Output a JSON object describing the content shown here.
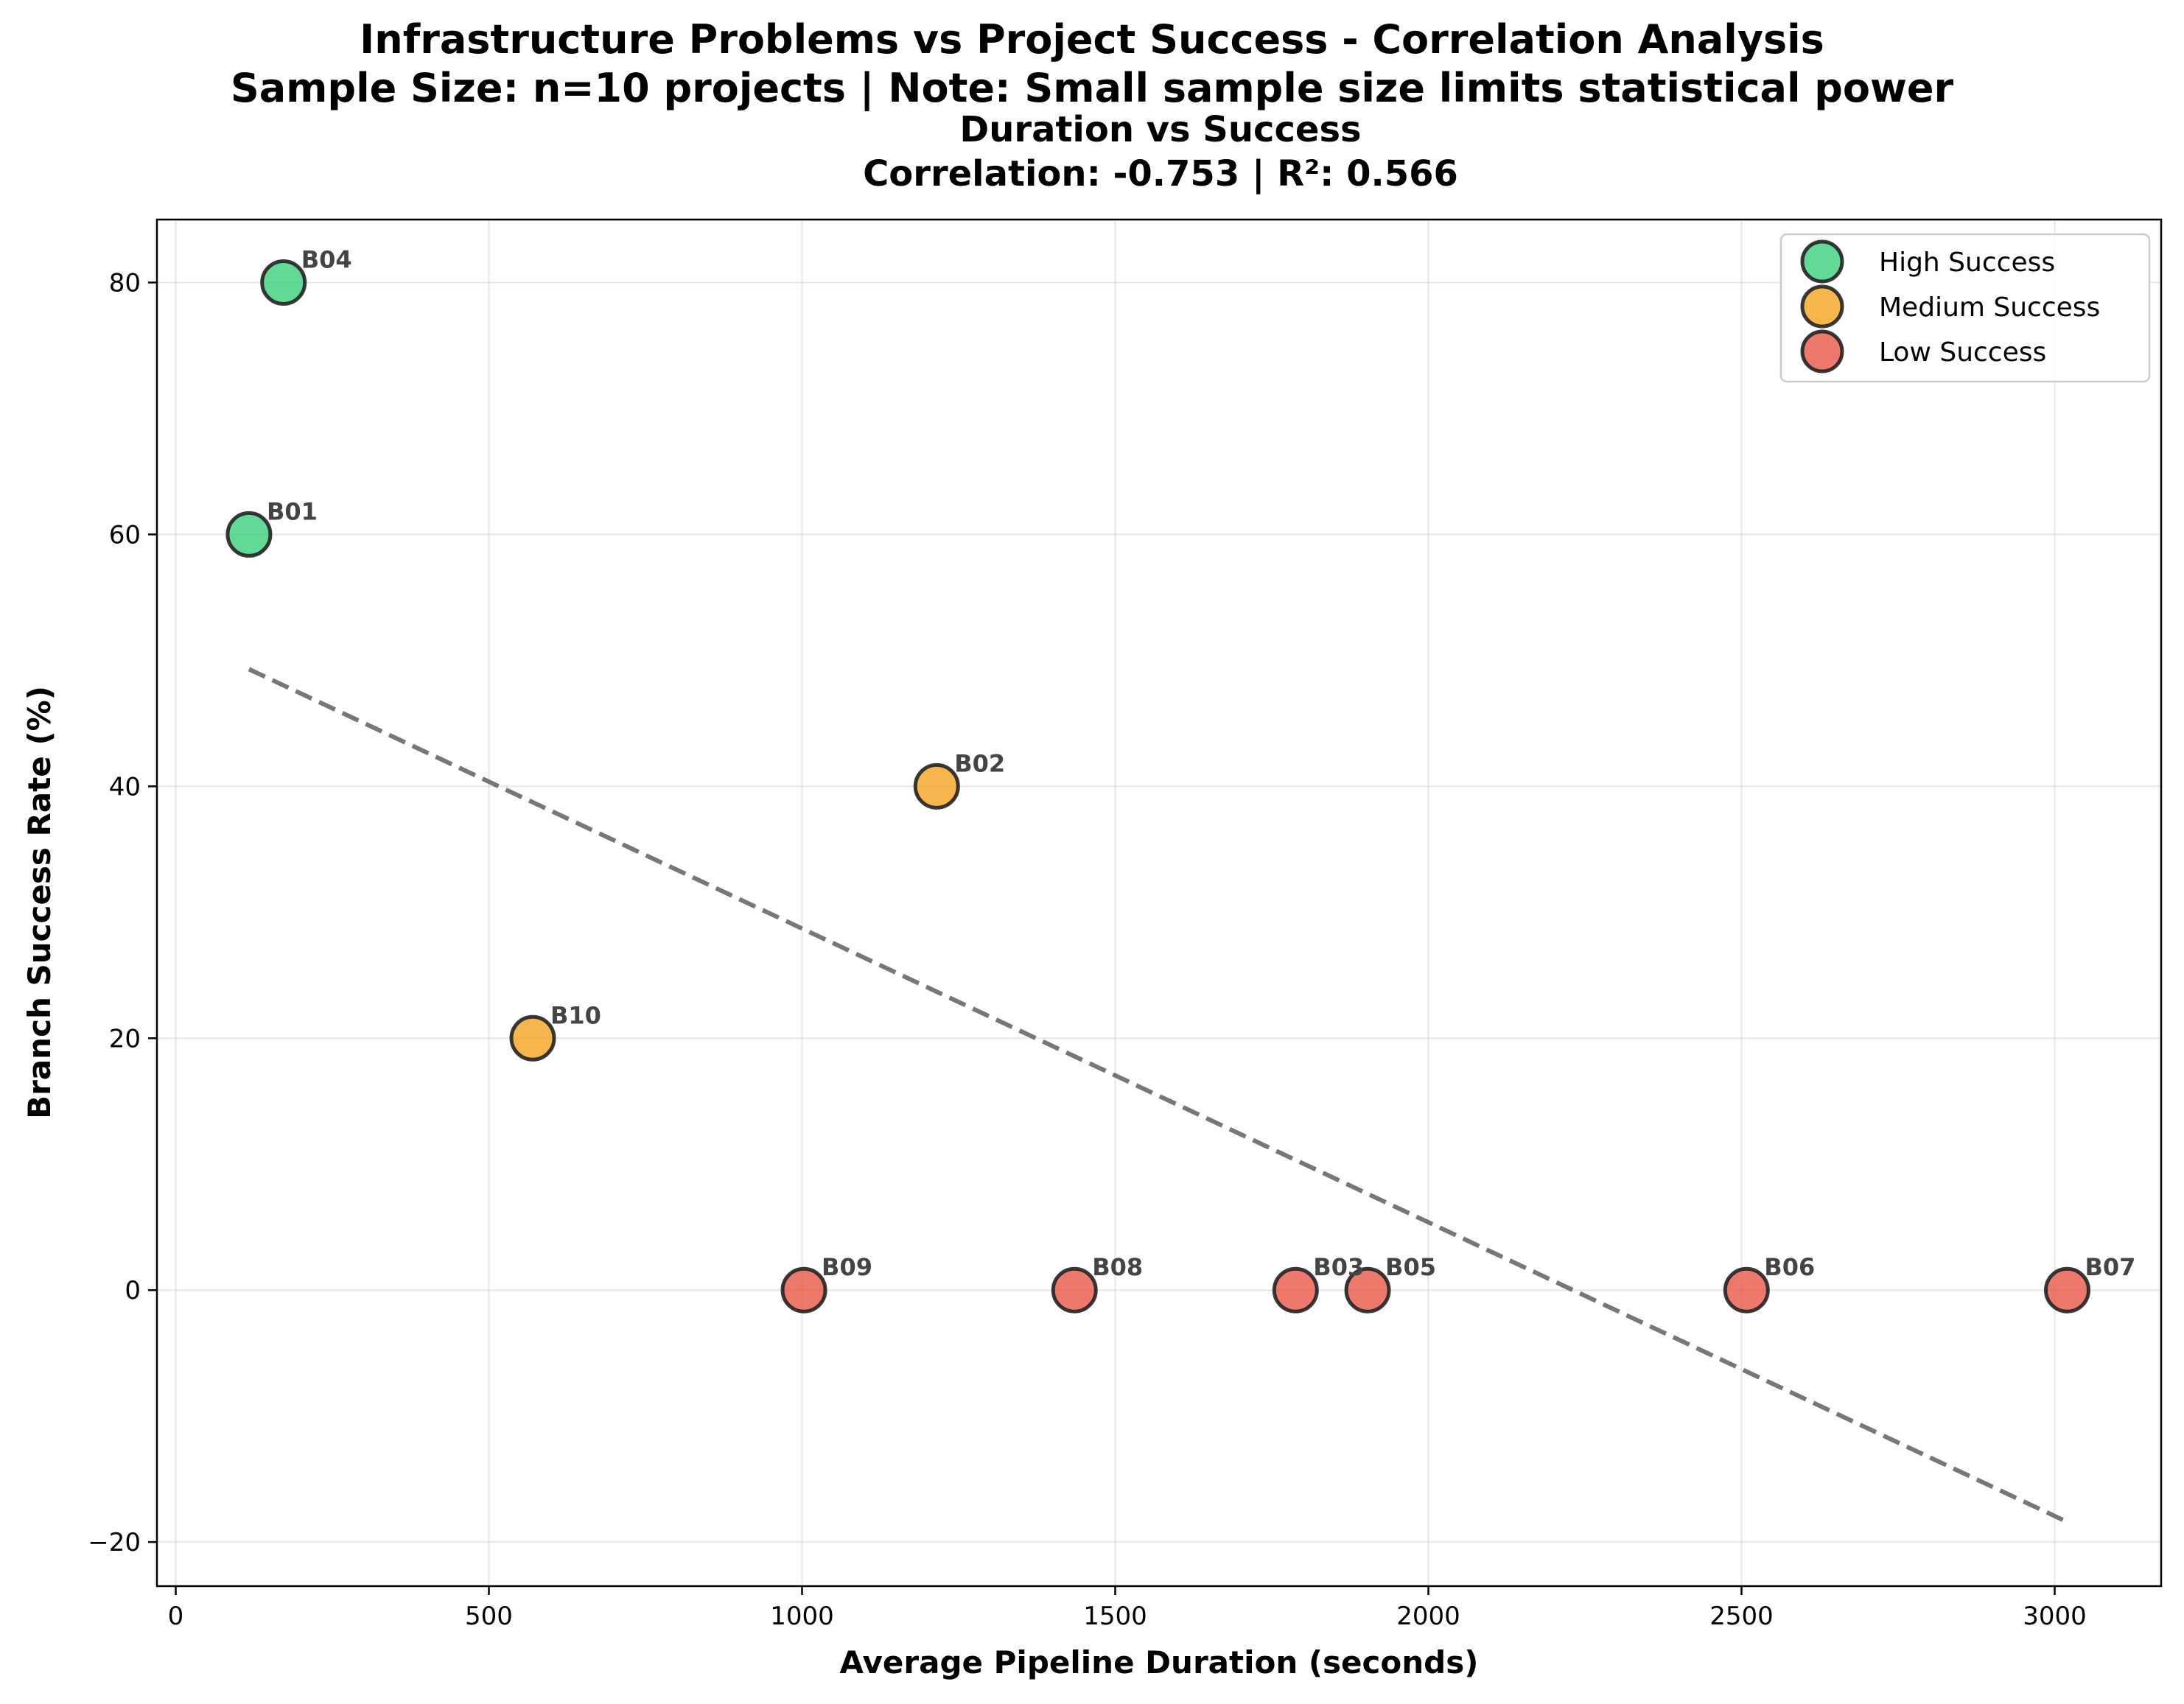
{
  "figure": {
    "suptitle_line1": "Infrastructure Problems vs Project Success - Correlation Analysis",
    "suptitle_line2": "Sample Size: n=10 projects | Note: Small sample size limits statistical power"
  },
  "chart_data": {
    "type": "scatter",
    "title_line1": "Duration vs Success",
    "title_line2": "Correlation: -0.753 | R²: 0.566",
    "xlabel": "Average Pipeline Duration (seconds)",
    "ylabel": "Branch Success Rate (%)",
    "xlim": [
      -30,
      3170
    ],
    "ylim": [
      -23.5,
      85
    ],
    "xticks": [
      0,
      500,
      1000,
      1500,
      2000,
      2500,
      3000
    ],
    "yticks": [
      -20,
      0,
      20,
      40,
      60,
      80
    ],
    "ytick_labels": [
      "−20",
      "0",
      "20",
      "40",
      "60",
      "80"
    ],
    "grid": true,
    "legend_position": "top-right",
    "series": [
      {
        "name": "High Success",
        "color": "#2ecc71",
        "points": [
          {
            "label": "B04",
            "x": 172,
            "y": 80
          },
          {
            "label": "B01",
            "x": 117,
            "y": 60
          }
        ]
      },
      {
        "name": "Medium Success",
        "color": "#f39c12",
        "points": [
          {
            "label": "B02",
            "x": 1215,
            "y": 40
          },
          {
            "label": "B10",
            "x": 570,
            "y": 20
          }
        ]
      },
      {
        "name": "Low Success",
        "color": "#e74c3c",
        "points": [
          {
            "label": "B09",
            "x": 1003,
            "y": 0
          },
          {
            "label": "B08",
            "x": 1435,
            "y": 0
          },
          {
            "label": "B03",
            "x": 1788,
            "y": 0
          },
          {
            "label": "B05",
            "x": 1903,
            "y": 0
          },
          {
            "label": "B06",
            "x": 2508,
            "y": 0
          },
          {
            "label": "B07",
            "x": 3020,
            "y": 0
          }
        ]
      }
    ],
    "trendline": {
      "x": [
        117,
        3020
      ],
      "y": [
        49.3,
        -18.4
      ],
      "color": "#555555"
    }
  }
}
